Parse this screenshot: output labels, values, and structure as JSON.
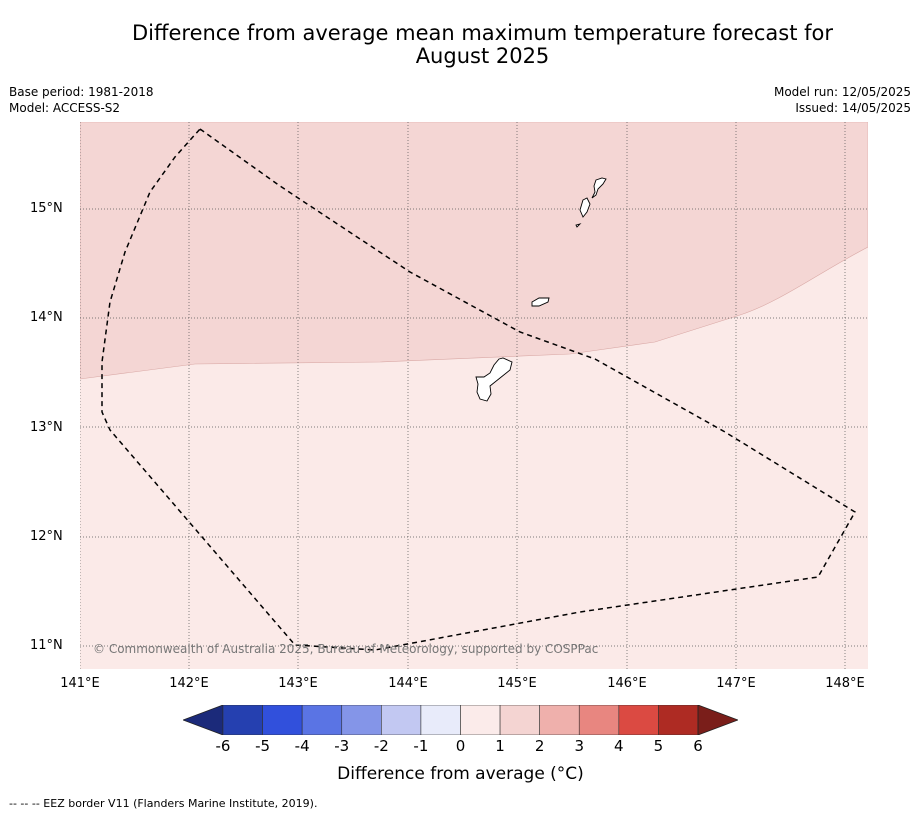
{
  "title_line1": "Difference from average mean maximum temperature forecast for",
  "title_line2": "August 2025",
  "base_period": "Base period: 1981-2018",
  "model": "Model: ACCESS-S2",
  "model_run": "Model run: 12/05/2025",
  "issued": "Issued: 14/05/2025",
  "lat_labels": [
    "15°N",
    "14°N",
    "13°N",
    "12°N",
    "11°N"
  ],
  "lon_labels": [
    "141°E",
    "142°E",
    "143°E",
    "144°E",
    "145°E",
    "146°E",
    "147°E",
    "148°E"
  ],
  "credit": "© Commonwealth of Australia 2025, Bureau of Meteorology, supported by COSPPac",
  "colorbar": {
    "title": "Difference from average (°C)",
    "ticks": [
      "-6",
      "-5",
      "-4",
      "-3",
      "-2",
      "-1",
      "0",
      "1",
      "2",
      "3",
      "4",
      "5",
      "6"
    ],
    "colors": {
      "below_min": "#1b2a7a",
      "bins": [
        "#2540b0",
        "#3150dc",
        "#5a74e4",
        "#8495e8",
        "#c2c8f2",
        "#e8ebfa",
        "#fbebea",
        "#f4d4d2",
        "#efb0ac",
        "#e88680",
        "#db4a42",
        "#ae2b23"
      ],
      "above_max": "#7a1e1a"
    }
  },
  "regions": {
    "north_value_bin": "1 to 2",
    "north_color": "#f4d6d4",
    "south_value_bin": "0 to 1",
    "south_color": "#fbeae8"
  },
  "footnote": "--  --  -- EEZ border V11 (Flanders Marine Institute, 2019)."
}
